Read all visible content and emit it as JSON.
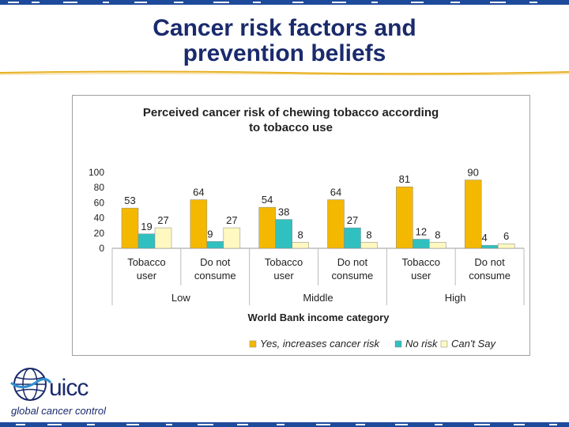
{
  "slide": {
    "title_line1": "Cancer risk factors and",
    "title_line2": "prevention beliefs"
  },
  "logo": {
    "name": "uicc",
    "tagline": "global cancer control",
    "icon": "globe-icon"
  },
  "colors": {
    "title": "#1a2a6c",
    "band": "#1e4a9c",
    "divider": "#e8b020",
    "yes": "#f5b800",
    "no": "#30c0c0",
    "cant": "#fff8c0"
  },
  "chart_data": {
    "type": "bar",
    "title_line1": "Perceived cancer risk of chewing tobacco according",
    "title_line2": "to tobacco use",
    "xlabel": "World Bank income category",
    "ylabel": "",
    "ylim": [
      0,
      100
    ],
    "yticks": [
      0,
      20,
      40,
      60,
      80,
      100
    ],
    "grid": false,
    "legend_position": "bottom-right",
    "categories": [
      {
        "line1": "Tobacco",
        "line2": "user",
        "group": "Low"
      },
      {
        "line1": "Do not",
        "line2": "consume",
        "group": "Low"
      },
      {
        "line1": "Tobacco",
        "line2": "user",
        "group": "Middle"
      },
      {
        "line1": "Do not",
        "line2": "consume",
        "group": "Middle"
      },
      {
        "line1": "Tobacco",
        "line2": "user",
        "group": "High"
      },
      {
        "line1": "Do not",
        "line2": "consume",
        "group": "High"
      }
    ],
    "groups": [
      "Low",
      "Middle",
      "High"
    ],
    "series": [
      {
        "name": "Yes, increases cancer risk",
        "color": "#f5b800",
        "values": [
          53,
          64,
          54,
          64,
          81,
          90
        ]
      },
      {
        "name": "No risk",
        "color": "#30c0c0",
        "values": [
          19,
          9,
          38,
          27,
          12,
          4
        ]
      },
      {
        "name": "Can't Say",
        "color": "#fff8c0",
        "values": [
          27,
          27,
          8,
          8,
          8,
          6
        ]
      }
    ]
  }
}
